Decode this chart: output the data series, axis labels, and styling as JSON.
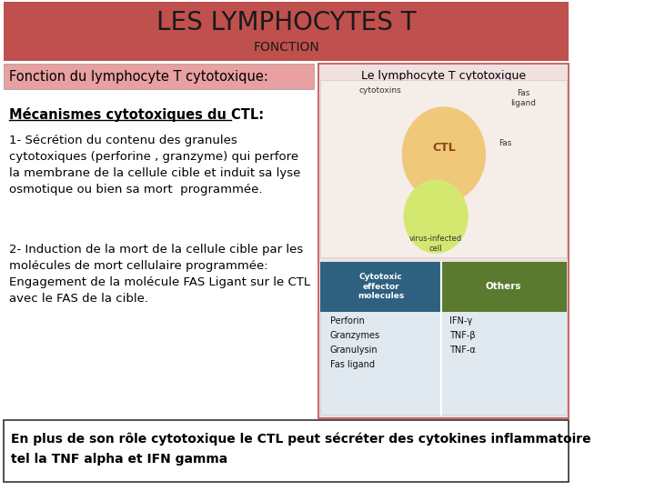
{
  "title": "LES LYMPHOCYTES T",
  "subtitle": "FONCTION",
  "header_bg": "#c0504d",
  "header_text_color": "#1a1a1a",
  "bg_color": "#ffffff",
  "section1_label": "Fonction du lymphocyte T cytotoxique:",
  "section1_bg": "#e8a0a0",
  "section1_text_color": "#000000",
  "right_label": "Le lymphocyte T cytotoxique",
  "right_box_bg": "#f0e0e0",
  "right_box_border": "#c0504d",
  "mech_title": "Mécanismes cytotoxiques du CTL:",
  "para1": "1- Sécrétion du contenu des granules\ncytotoxiques (perforine , granzyme) qui perfore\nla membrane de la cellule cible et induit sa lyse\nosmotique ou bien sa mort  programmée.",
  "para2": "2- Induction de la mort de la cellule cible par les\nmolécules de mort cellulaire programmée:\nEngagement de la molécule FAS Ligant sur le CTL\navec le FAS de la cible.",
  "footer_text": "En plus de son rôle cytotoxique le CTL peut sécréter des cytokines inflammatoire\ntel la TNF alpha et IFN gamma",
  "footer_bg": "#ffffff",
  "footer_border": "#333333",
  "title_fontsize": 20,
  "subtitle_fontsize": 10,
  "body_fontsize": 9.5,
  "mech_fontsize": 10.5,
  "footer_fontsize": 10
}
